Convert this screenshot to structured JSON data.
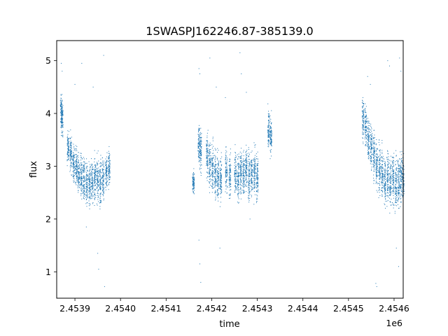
{
  "chart_data": {
    "type": "scatter",
    "title": "1SWASPJ162246.87-385139.0",
    "xlabel": "time",
    "ylabel": "flux",
    "x_offset_label": "1e6",
    "xlim": [
      2453860,
      2454620
    ],
    "ylim": [
      0.5,
      5.38
    ],
    "x_ticks": [
      2453900,
      2454000,
      2454100,
      2454200,
      2454300,
      2454400,
      2454500,
      2454600
    ],
    "x_tick_labels": [
      "2.4539",
      "2.4540",
      "2.4541",
      "2.4542",
      "2.4543",
      "2.4544",
      "2.4545",
      "2.4546"
    ],
    "y_ticks": [
      1,
      2,
      3,
      4,
      5
    ],
    "y_tick_labels": [
      "1",
      "2",
      "3",
      "4",
      "5"
    ],
    "grid": false,
    "legend": "none",
    "marker_color": "#1f77b4",
    "observing_seasons": [
      {
        "x_range": [
          2453870,
          2453975
        ],
        "nights": [
          {
            "x": 2453870,
            "y": 4.05,
            "spread": 0.18
          },
          {
            "x": 2453872,
            "y": 3.9,
            "spread": 0.2
          },
          {
            "x": 2453885,
            "y": 3.35,
            "spread": 0.2
          },
          {
            "x": 2453891,
            "y": 3.25,
            "spread": 0.22
          },
          {
            "x": 2453897,
            "y": 3.05,
            "spread": 0.22
          },
          {
            "x": 2453903,
            "y": 2.95,
            "spread": 0.24
          },
          {
            "x": 2453908,
            "y": 2.85,
            "spread": 0.22
          },
          {
            "x": 2453914,
            "y": 2.8,
            "spread": 0.24
          },
          {
            "x": 2453920,
            "y": 2.75,
            "spread": 0.25
          },
          {
            "x": 2453926,
            "y": 2.7,
            "spread": 0.26
          },
          {
            "x": 2453932,
            "y": 2.65,
            "spread": 0.3
          },
          {
            "x": 2453938,
            "y": 2.7,
            "spread": 0.26
          },
          {
            "x": 2453944,
            "y": 2.75,
            "spread": 0.25
          },
          {
            "x": 2453950,
            "y": 2.75,
            "spread": 0.26
          },
          {
            "x": 2453956,
            "y": 2.7,
            "spread": 0.28
          },
          {
            "x": 2453962,
            "y": 2.8,
            "spread": 0.25
          },
          {
            "x": 2453969,
            "y": 2.85,
            "spread": 0.22
          },
          {
            "x": 2453975,
            "y": 2.95,
            "spread": 0.2
          }
        ]
      },
      {
        "x_range": [
          2454160,
          2454330
        ],
        "nights": [
          {
            "x": 2454160,
            "y": 2.7,
            "spread": 0.12
          },
          {
            "x": 2454172,
            "y": 3.4,
            "spread": 0.25
          },
          {
            "x": 2454176,
            "y": 3.3,
            "spread": 0.25
          },
          {
            "x": 2454190,
            "y": 3.2,
            "spread": 0.28
          },
          {
            "x": 2454196,
            "y": 3.05,
            "spread": 0.28
          },
          {
            "x": 2454202,
            "y": 2.95,
            "spread": 0.28
          },
          {
            "x": 2454208,
            "y": 2.85,
            "spread": 0.3
          },
          {
            "x": 2454214,
            "y": 2.8,
            "spread": 0.32
          },
          {
            "x": 2454220,
            "y": 2.75,
            "spread": 0.3
          },
          {
            "x": 2454232,
            "y": 2.9,
            "spread": 0.25
          },
          {
            "x": 2454240,
            "y": 2.8,
            "spread": 0.26
          },
          {
            "x": 2454252,
            "y": 2.85,
            "spread": 0.25
          },
          {
            "x": 2454258,
            "y": 2.8,
            "spread": 0.28
          },
          {
            "x": 2454264,
            "y": 2.9,
            "spread": 0.26
          },
          {
            "x": 2454270,
            "y": 2.85,
            "spread": 0.28
          },
          {
            "x": 2454276,
            "y": 2.95,
            "spread": 0.25
          },
          {
            "x": 2454282,
            "y": 2.8,
            "spread": 0.3
          },
          {
            "x": 2454288,
            "y": 2.85,
            "spread": 0.28
          },
          {
            "x": 2454294,
            "y": 2.9,
            "spread": 0.3
          },
          {
            "x": 2454300,
            "y": 2.8,
            "spread": 0.28
          },
          {
            "x": 2454325,
            "y": 3.7,
            "spread": 0.22
          },
          {
            "x": 2454330,
            "y": 3.55,
            "spread": 0.22
          }
        ]
      },
      {
        "x_range": [
          2454530,
          2454620
        ],
        "nights": [
          {
            "x": 2454532,
            "y": 3.9,
            "spread": 0.25
          },
          {
            "x": 2454538,
            "y": 3.75,
            "spread": 0.25
          },
          {
            "x": 2454544,
            "y": 3.5,
            "spread": 0.28
          },
          {
            "x": 2454550,
            "y": 3.35,
            "spread": 0.28
          },
          {
            "x": 2454556,
            "y": 3.2,
            "spread": 0.28
          },
          {
            "x": 2454562,
            "y": 3.05,
            "spread": 0.3
          },
          {
            "x": 2454568,
            "y": 2.95,
            "spread": 0.3
          },
          {
            "x": 2454574,
            "y": 2.85,
            "spread": 0.3
          },
          {
            "x": 2454580,
            "y": 2.75,
            "spread": 0.3
          },
          {
            "x": 2454586,
            "y": 2.8,
            "spread": 0.32
          },
          {
            "x": 2454592,
            "y": 2.7,
            "spread": 0.3
          },
          {
            "x": 2454598,
            "y": 2.75,
            "spread": 0.32
          },
          {
            "x": 2454604,
            "y": 2.65,
            "spread": 0.32
          },
          {
            "x": 2454610,
            "y": 2.7,
            "spread": 0.3
          },
          {
            "x": 2454615,
            "y": 2.8,
            "spread": 0.3
          },
          {
            "x": 2454620,
            "y": 2.75,
            "spread": 0.28
          }
        ]
      }
    ],
    "outliers": [
      {
        "x": 2453870,
        "y": 4.95
      },
      {
        "x": 2453872,
        "y": 4.8
      },
      {
        "x": 2453900,
        "y": 4.55
      },
      {
        "x": 2453915,
        "y": 4.95
      },
      {
        "x": 2453925,
        "y": 1.85
      },
      {
        "x": 2453940,
        "y": 4.5
      },
      {
        "x": 2453950,
        "y": 1.35
      },
      {
        "x": 2453952,
        "y": 1.05
      },
      {
        "x": 2453965,
        "y": 0.72
      },
      {
        "x": 2453963,
        "y": 5.1
      },
      {
        "x": 2454172,
        "y": 4.85
      },
      {
        "x": 2454174,
        "y": 4.75
      },
      {
        "x": 2454174,
        "y": 1.15
      },
      {
        "x": 2454176,
        "y": 0.8
      },
      {
        "x": 2454172,
        "y": 1.6
      },
      {
        "x": 2454196,
        "y": 5.05
      },
      {
        "x": 2454210,
        "y": 4.5
      },
      {
        "x": 2454218,
        "y": 1.45
      },
      {
        "x": 2454230,
        "y": 4.3
      },
      {
        "x": 2454265,
        "y": 4.75
      },
      {
        "x": 2454262,
        "y": 5.15
      },
      {
        "x": 2454276,
        "y": 4.4
      },
      {
        "x": 2454284,
        "y": 2.0
      },
      {
        "x": 2454542,
        "y": 4.7
      },
      {
        "x": 2454548,
        "y": 4.55
      },
      {
        "x": 2454560,
        "y": 0.78
      },
      {
        "x": 2454562,
        "y": 0.72
      },
      {
        "x": 2454586,
        "y": 5.0
      },
      {
        "x": 2454590,
        "y": 4.9
      },
      {
        "x": 2454605,
        "y": 1.45
      },
      {
        "x": 2454610,
        "y": 1.1
      },
      {
        "x": 2454612,
        "y": 5.05
      },
      {
        "x": 2454615,
        "y": 4.8
      }
    ]
  }
}
